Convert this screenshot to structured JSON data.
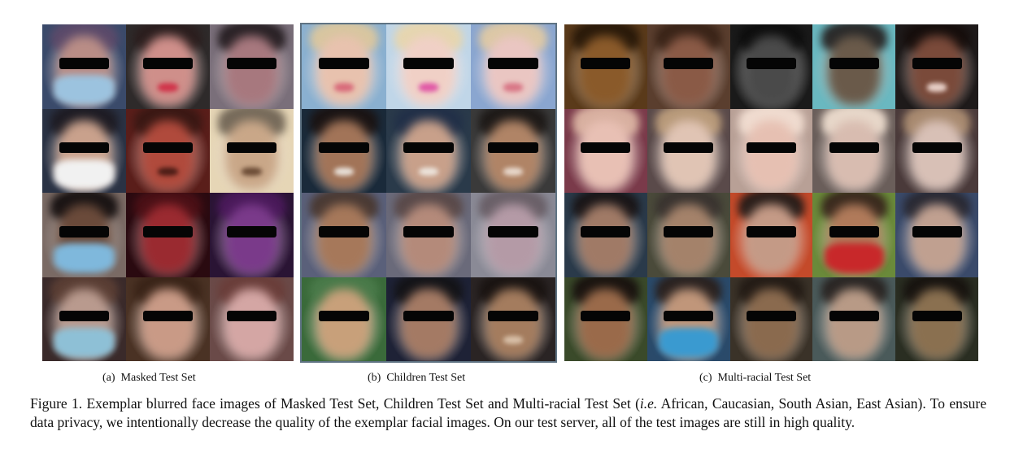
{
  "panels": [
    {
      "id": "a",
      "label": "(a)",
      "title": "Masked Test Set",
      "faces": [
        {
          "bg": "#3a4a6a",
          "skin": "#b98d86",
          "hair": "#5b4a6a",
          "mask": "#9cc3df"
        },
        {
          "bg": "#2e2a2a",
          "skin": "#cf8f8a",
          "hair": "#2b1e1e",
          "lips": "#d0344a"
        },
        {
          "bg": "#7a6f7a",
          "skin": "#a7787e",
          "hair": "#2a2226"
        },
        {
          "bg": "#2a3244",
          "skin": "#c9a18c",
          "hair": "#1e1c24",
          "mask": "#f1f1f1"
        },
        {
          "bg": "#5a1e1a",
          "skin": "#b04a3c",
          "hair": "#3a1814",
          "mouth": "#4a1c16"
        },
        {
          "bg": "#e6d6b6",
          "skin": "#c9a788",
          "hair": "#766a5a",
          "mouth": "#6a4a34"
        },
        {
          "bg": "#7a6a64",
          "skin": "#6a4a3a",
          "hair": "#1a1414",
          "mask": "#7fb8dc"
        },
        {
          "bg": "#2a0a10",
          "skin": "#9a2a30",
          "hair": "#4a1016"
        },
        {
          "bg": "#2a1434",
          "skin": "#7a3a8a",
          "hair": "#4a1a5a"
        },
        {
          "bg": "#3a2a2a",
          "skin": "#b99a8e",
          "hair": "#5a3e34",
          "mask": "#8ec0d6"
        },
        {
          "bg": "#4a3224",
          "skin": "#c99a86",
          "hair": "#3a2418"
        },
        {
          "bg": "#6a4a48",
          "skin": "#d4a6a4",
          "hair": "#6a3e3a"
        }
      ]
    },
    {
      "id": "b",
      "label": "(b)",
      "title": "Children Test Set",
      "faces": [
        {
          "bg": "#8ab0d0",
          "skin": "#e8c2ae",
          "hair": "#d8c6a0",
          "lips": "#d86a7a"
        },
        {
          "bg": "#c0d6e8",
          "skin": "#f0d0c6",
          "hair": "#e6d6b0",
          "mouth": "#e058a6"
        },
        {
          "bg": "#8aa6d0",
          "skin": "#eac6c2",
          "hair": "#dcc8a6",
          "lips": "#d87686"
        },
        {
          "bg": "#1a2a3a",
          "skin": "#a27458",
          "hair": "#1a1414",
          "mouth": "#e8e0d8"
        },
        {
          "bg": "#2a3a4a",
          "skin": "#c8a08a",
          "hair": "#223048",
          "mouth": "#ece4dc"
        },
        {
          "bg": "#3a3a3a",
          "skin": "#b08466",
          "hair": "#1e1a18",
          "mouth": "#e8d8cc"
        },
        {
          "bg": "#5a607a",
          "skin": "#a6785a",
          "hair": "#4a3a34"
        },
        {
          "bg": "#6a6a7a",
          "skin": "#b48a7a",
          "hair": "#5a4a4a"
        },
        {
          "bg": "#8a8a96",
          "skin": "#b49aa6",
          "hair": "#6a6068"
        },
        {
          "bg": "#3a6a3a",
          "skin": "#c8a07a",
          "hair": "#4a7a4a"
        },
        {
          "bg": "#1e2236",
          "skin": "#a47a64",
          "hair": "#141418"
        },
        {
          "bg": "#2a2424",
          "skin": "#a47c5e",
          "hair": "#1a1412",
          "mouth": "#d8c0a8"
        }
      ]
    },
    {
      "id": "c",
      "label": "(c)",
      "title": "Multi-racial Test Set",
      "faces": [
        {
          "bg": "#5a3a1a",
          "skin": "#8a5a2a",
          "hair": "#2a1a0a"
        },
        {
          "bg": "#5a3e2e",
          "skin": "#8a5a46",
          "hair": "#3a2418"
        },
        {
          "bg": "#1a1a1a",
          "skin": "#4a4a4a",
          "hair": "#0e0e0e"
        },
        {
          "bg": "#6ab8c0",
          "skin": "#6a5a4a",
          "hair": "#2a2a2a"
        },
        {
          "bg": "#1e1a1a",
          "skin": "#7a4a3a",
          "hair": "#160e0c",
          "mouth": "#e8d0c8"
        },
        {
          "bg": "#7a3a4a",
          "skin": "#e8c0b4",
          "hair": "#d8b0a0"
        },
        {
          "bg": "#5a4a4a",
          "skin": "#e0c4b4",
          "hair": "#b89a7a"
        },
        {
          "bg": "#b8a096",
          "skin": "#e6c0b2",
          "hair": "#f0dcd0"
        },
        {
          "bg": "#6a5e5a",
          "skin": "#d8bcb0",
          "hair": "#e8d8ca"
        },
        {
          "bg": "#4a3a3a",
          "skin": "#d8c0b6",
          "hair": "#a88a70"
        },
        {
          "bg": "#2a3a4a",
          "skin": "#a07a66",
          "hair": "#1a1618"
        },
        {
          "bg": "#4a4a3a",
          "skin": "#a4826a",
          "hair": "#3a3430"
        },
        {
          "bg": "#c44a2a",
          "skin": "#c49a86",
          "hair": "#2a1e1a"
        },
        {
          "bg": "#6a8a3a",
          "skin": "#b07a5a",
          "hair": "#3a2a1e",
          "mask": "#c8282a"
        },
        {
          "bg": "#3a4a6a",
          "skin": "#c0a090",
          "hair": "#2a2a34"
        },
        {
          "bg": "#3a4a2a",
          "skin": "#9a6a4a",
          "hair": "#1a1410"
        },
        {
          "bg": "#2a4a6a",
          "skin": "#c0967a",
          "hair": "#2a2220",
          "mask": "#3a9ad0"
        },
        {
          "bg": "#3a3228",
          "skin": "#8a6a4e",
          "hair": "#241c16"
        },
        {
          "bg": "#4a5a5a",
          "skin": "#b89a86",
          "hair": "#2a2624"
        },
        {
          "bg": "#2a2e22",
          "skin": "#8a7050",
          "hair": "#181410"
        }
      ]
    }
  ],
  "caption": {
    "prefix": "Figure 1. Exemplar blurred face images of Masked Test Set, Children Test Set and Multi-racial Test Set (",
    "emph": "i.e.",
    "suffix": " African, Caucasian, South Asian, East Asian). To ensure data privacy, we intentionally decrease the quality of the exemplar facial images. On our test server, all of the test images are still in high quality."
  }
}
